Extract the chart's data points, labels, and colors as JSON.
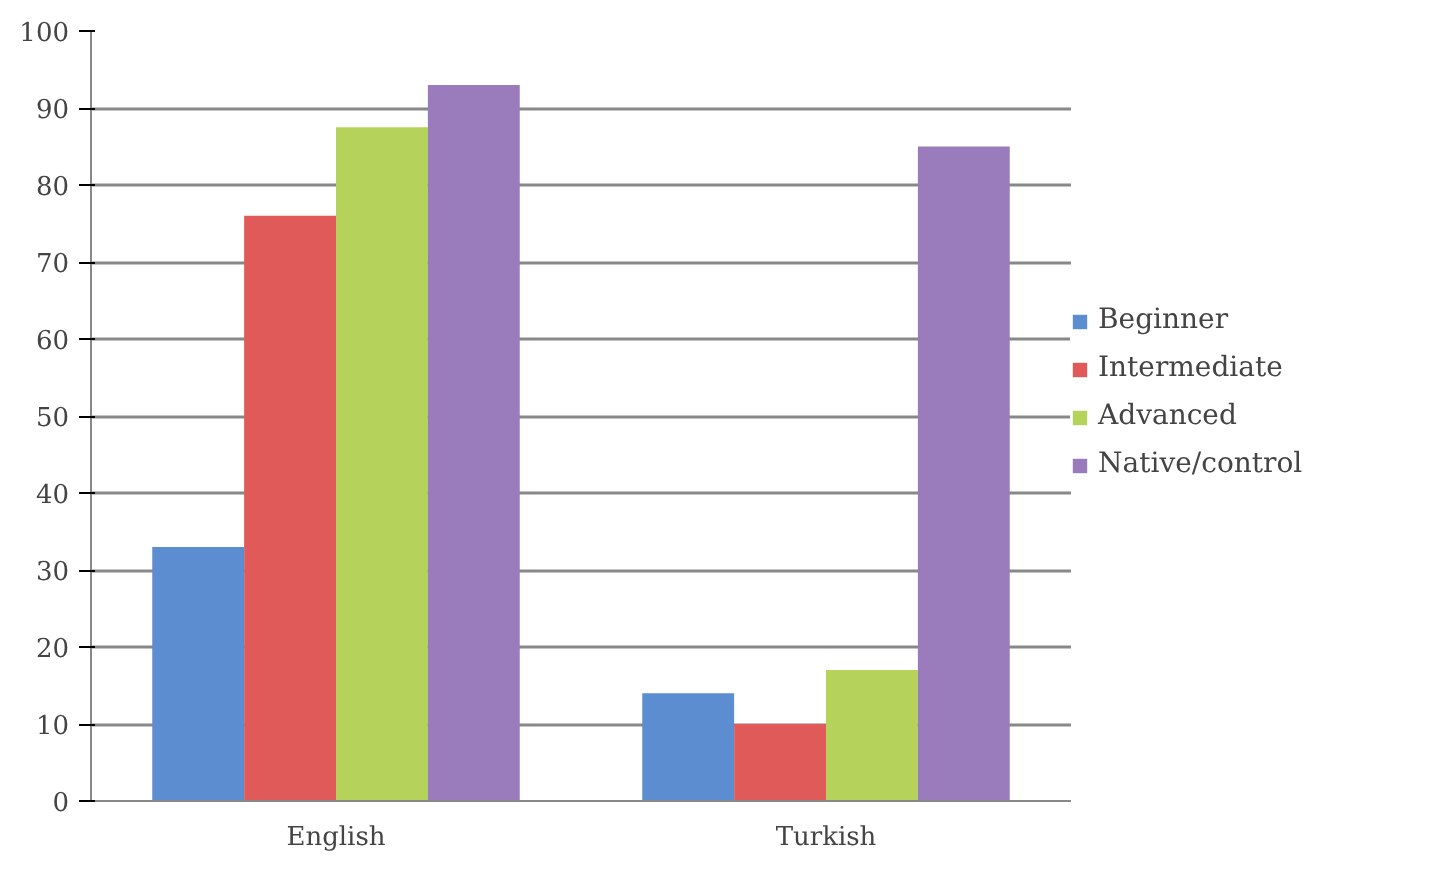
{
  "chart_data": {
    "type": "bar",
    "categories": [
      "English",
      "Turkish"
    ],
    "series": [
      {
        "name": "Beginner",
        "color": "#5b8dd0",
        "values": [
          33,
          14
        ]
      },
      {
        "name": "Intermediate",
        "color": "#e05a5a",
        "values": [
          76,
          10
        ]
      },
      {
        "name": "Advanced",
        "color": "#b5d35a",
        "values": [
          87.5,
          17
        ]
      },
      {
        "name": "Native/control",
        "color": "#9a7cbc",
        "values": [
          93,
          85
        ]
      }
    ],
    "ylim": [
      0,
      100
    ],
    "yticks": [
      0,
      10,
      20,
      30,
      40,
      50,
      60,
      70,
      80,
      90,
      100
    ],
    "grid": "y",
    "legend": "right"
  }
}
